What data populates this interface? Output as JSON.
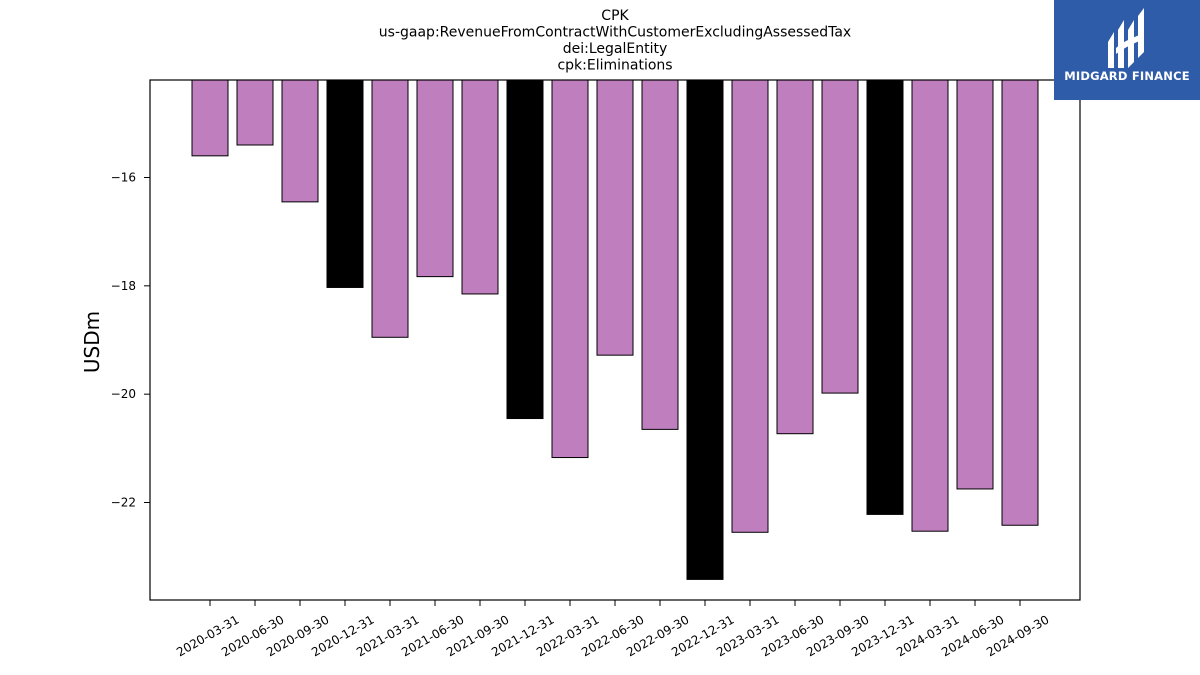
{
  "chart_data": {
    "type": "bar",
    "title": [
      "CPK",
      "us-gaap:RevenueFromContractWithCustomerExcludingAssessedTax",
      "dei:LegalEntity",
      "cpk:Eliminations"
    ],
    "xlabel": "",
    "ylabel": "USDm",
    "ylim": [
      -23.8,
      -14.2
    ],
    "yticks": [
      -16,
      -18,
      -20,
      -22
    ],
    "ytick_labels": [
      "−16",
      "−18",
      "−20",
      "−22"
    ],
    "grid": false,
    "categories": [
      "2020-03-31",
      "2020-06-30",
      "2020-09-30",
      "2020-12-31",
      "2021-03-31",
      "2021-06-30",
      "2021-09-30",
      "2021-12-31",
      "2022-03-31",
      "2022-06-30",
      "2022-09-30",
      "2022-12-31",
      "2023-03-31",
      "2023-06-30",
      "2023-09-30",
      "2023-12-31",
      "2024-03-31",
      "2024-06-30",
      "2024-09-30"
    ],
    "values": [
      -15.6,
      -15.4,
      -16.45,
      -18.03,
      -18.95,
      -17.83,
      -18.15,
      -20.45,
      -21.17,
      -19.28,
      -20.65,
      -23.42,
      -22.55,
      -20.73,
      -19.98,
      -22.22,
      -22.53,
      -21.75,
      -22.42
    ],
    "colors": [
      "#bf7fbf",
      "#bf7fbf",
      "#bf7fbf",
      "#000000",
      "#bf7fbf",
      "#bf7fbf",
      "#bf7fbf",
      "#000000",
      "#bf7fbf",
      "#bf7fbf",
      "#bf7fbf",
      "#000000",
      "#bf7fbf",
      "#bf7fbf",
      "#bf7fbf",
      "#000000",
      "#bf7fbf",
      "#bf7fbf",
      "#bf7fbf"
    ]
  },
  "logo": {
    "text": "MIDGARD FINANCE",
    "background": "#2f5ca8",
    "icon": "midgard-logo-icon"
  }
}
